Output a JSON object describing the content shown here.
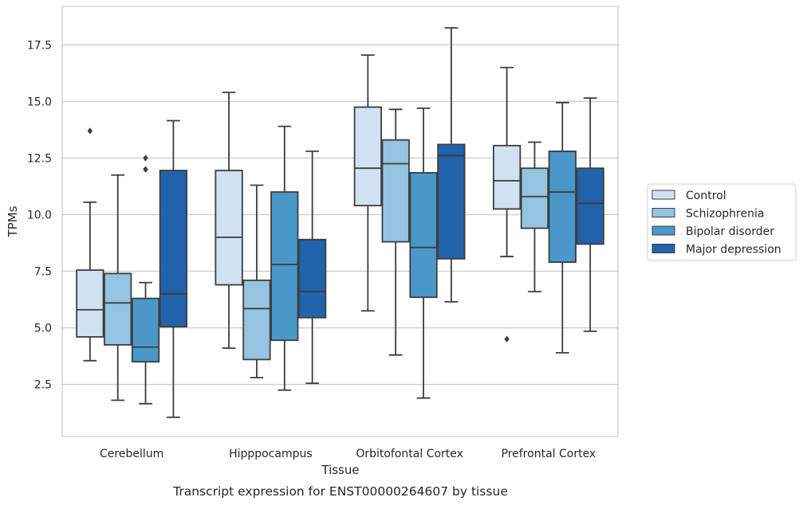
{
  "chart_data": {
    "type": "box",
    "caption": "Transcript expression for ENST00000264607 by tissue",
    "xlabel": "Tissue",
    "ylabel": "TPMs",
    "ylim": [
      0.2,
      19.2
    ],
    "yticks": [
      2.5,
      5.0,
      7.5,
      10.0,
      12.5,
      15.0,
      17.5
    ],
    "ytick_labels": [
      "2.5",
      "5.0",
      "7.5",
      "10.0",
      "12.5",
      "15.0",
      "17.5"
    ],
    "grid": "horizontal",
    "legend_position": "right",
    "categories": [
      "Cerebellum",
      "Hipppocampus",
      "Orbitofontal Cortex",
      "Prefrontal Cortex"
    ],
    "series": [
      {
        "name": "Control",
        "color": "#d0e1f2",
        "boxes": [
          {
            "whisker_low": 3.55,
            "q1": 4.6,
            "median": 5.8,
            "q3": 7.55,
            "whisker_high": 10.55,
            "outliers": [
              13.7
            ]
          },
          {
            "whisker_low": 4.1,
            "q1": 6.9,
            "median": 9.0,
            "q3": 11.95,
            "whisker_high": 15.4,
            "outliers": []
          },
          {
            "whisker_low": 5.75,
            "q1": 10.4,
            "median": 12.05,
            "q3": 14.75,
            "whisker_high": 17.05,
            "outliers": []
          },
          {
            "whisker_low": 8.15,
            "q1": 10.25,
            "median": 11.5,
            "q3": 13.05,
            "whisker_high": 16.5,
            "outliers": [
              4.5
            ]
          }
        ]
      },
      {
        "name": "Schizophrenia",
        "color": "#94c4df",
        "boxes": [
          {
            "whisker_low": 1.8,
            "q1": 4.25,
            "median": 6.1,
            "q3": 7.4,
            "whisker_high": 11.75,
            "outliers": []
          },
          {
            "whisker_low": 2.8,
            "q1": 3.6,
            "median": 5.85,
            "q3": 7.1,
            "whisker_high": 11.3,
            "outliers": []
          },
          {
            "whisker_low": 3.8,
            "q1": 8.8,
            "median": 12.25,
            "q3": 13.3,
            "whisker_high": 14.65,
            "outliers": []
          },
          {
            "whisker_low": 6.6,
            "q1": 9.4,
            "median": 10.8,
            "q3": 12.05,
            "whisker_high": 13.2,
            "outliers": []
          }
        ]
      },
      {
        "name": "Bipolar disorder",
        "color": "#4a98c9",
        "boxes": [
          {
            "whisker_low": 1.65,
            "q1": 3.5,
            "median": 4.15,
            "q3": 6.3,
            "whisker_high": 7.0,
            "outliers": [
              12.0,
              12.5
            ]
          },
          {
            "whisker_low": 2.25,
            "q1": 4.45,
            "median": 7.8,
            "q3": 11.0,
            "whisker_high": 13.9,
            "outliers": []
          },
          {
            "whisker_low": 1.9,
            "q1": 6.35,
            "median": 8.55,
            "q3": 11.85,
            "whisker_high": 14.7,
            "outliers": []
          },
          {
            "whisker_low": 3.9,
            "q1": 7.9,
            "median": 11.0,
            "q3": 12.8,
            "whisker_high": 14.95,
            "outliers": []
          }
        ]
      },
      {
        "name": "Major depression",
        "color": "#2163aa",
        "boxes": [
          {
            "whisker_low": 1.05,
            "q1": 5.05,
            "median": 6.5,
            "q3": 11.95,
            "whisker_high": 14.15,
            "outliers": []
          },
          {
            "whisker_low": 2.55,
            "q1": 5.45,
            "median": 6.6,
            "q3": 8.9,
            "whisker_high": 12.8,
            "outliers": []
          },
          {
            "whisker_low": 6.15,
            "q1": 8.05,
            "median": 12.6,
            "q3": 13.1,
            "whisker_high": 18.25,
            "outliers": []
          },
          {
            "whisker_low": 4.85,
            "q1": 8.7,
            "median": 10.5,
            "q3": 12.05,
            "whisker_high": 15.15,
            "outliers": []
          }
        ]
      }
    ]
  }
}
